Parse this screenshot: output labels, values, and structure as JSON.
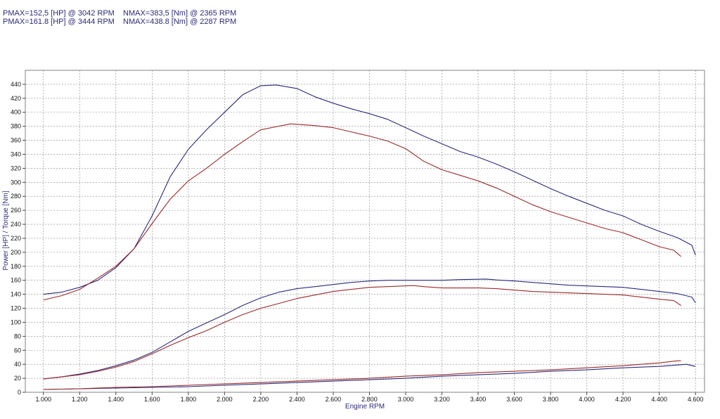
{
  "header": {
    "line1_p": "PMAX=152,5 [HP] @ 3042 RPM",
    "line1_n": "NMAX=383,5 [Nm] @ 2365 RPM",
    "line2_p": "PMAX=161.8 [HP] @ 3444 RPM",
    "line2_n": "NMAX=438.8 [Nm] @ 2287 RPM"
  },
  "chart_data": {
    "type": "line",
    "xlabel": "Engine RPM",
    "ylabel": "Power [HP] / Torque [Nm]",
    "xlim": [
      900,
      4650
    ],
    "ylim": [
      0,
      460
    ],
    "x_ticks": [
      "1.000",
      "1.200",
      "1.400",
      "1.600",
      "1.800",
      "2.000",
      "2.200",
      "2.400",
      "2.600",
      "2.800",
      "3.000",
      "3.200",
      "3.400",
      "3.600",
      "3.800",
      "4.000",
      "4.200",
      "4.400",
      "4.600"
    ],
    "x_tick_values": [
      1000,
      1200,
      1400,
      1600,
      1800,
      2000,
      2200,
      2400,
      2600,
      2800,
      3000,
      3200,
      3400,
      3600,
      3800,
      4000,
      4200,
      4400,
      4600
    ],
    "y_ticks": [
      0,
      20,
      40,
      60,
      80,
      100,
      120,
      140,
      160,
      180,
      200,
      220,
      240,
      260,
      280,
      300,
      320,
      340,
      360,
      380,
      400,
      420,
      440
    ],
    "grid": true,
    "colors": {
      "tuned": "#2a2a7a",
      "stock": "#9a2a2a"
    },
    "series": [
      {
        "color": "#2a2a7a",
        "x": [
          1000,
          1100,
          1200,
          1300,
          1400,
          1500,
          1600,
          1700,
          1800,
          1900,
          2000,
          2100,
          2200,
          2287,
          2400,
          2500,
          2600,
          2700,
          2800,
          2900,
          3000,
          3100,
          3200,
          3300,
          3400,
          3500,
          3600,
          3700,
          3800,
          3900,
          4000,
          4100,
          4200,
          4300,
          4400,
          4500,
          4580,
          4600
        ],
        "y": [
          140,
          143,
          150,
          160,
          178,
          205,
          252,
          308,
          347,
          375,
          400,
          425,
          438,
          439,
          434,
          422,
          413,
          405,
          398,
          390,
          378,
          366,
          355,
          344,
          336,
          326,
          315,
          303,
          291,
          280,
          270,
          260,
          252,
          240,
          230,
          221,
          210,
          196
        ]
      },
      {
        "color": "#9a2a2a",
        "x": [
          1000,
          1100,
          1200,
          1300,
          1400,
          1500,
          1600,
          1700,
          1800,
          1900,
          2000,
          2100,
          2200,
          2365,
          2500,
          2600,
          2700,
          2800,
          2900,
          3000,
          3100,
          3200,
          3300,
          3400,
          3500,
          3600,
          3700,
          3800,
          3900,
          4000,
          4100,
          4200,
          4300,
          4400,
          4480,
          4520
        ],
        "y": [
          132,
          138,
          147,
          163,
          180,
          205,
          241,
          276,
          302,
          320,
          340,
          358,
          375,
          383.5,
          381,
          378,
          372,
          366,
          359,
          348,
          330,
          318,
          310,
          302,
          292,
          280,
          268,
          258,
          250,
          242,
          234,
          228,
          218,
          208,
          203,
          194
        ]
      },
      {
        "color": "#2a2a7a",
        "x": [
          1000,
          1100,
          1200,
          1300,
          1400,
          1500,
          1600,
          1700,
          1800,
          1900,
          2000,
          2100,
          2200,
          2300,
          2400,
          2500,
          2600,
          2700,
          2800,
          2900,
          3000,
          3100,
          3200,
          3300,
          3444,
          3500,
          3600,
          3700,
          3800,
          3900,
          4000,
          4100,
          4200,
          4300,
          4400,
          4500,
          4580,
          4600
        ],
        "y": [
          19,
          22,
          26,
          31,
          38,
          46,
          57,
          72,
          87,
          99,
          111,
          124,
          135,
          143,
          148,
          151,
          154,
          157,
          159,
          160,
          160,
          160,
          160,
          161,
          161.8,
          160.5,
          159,
          157,
          155,
          153,
          152,
          151,
          150,
          147,
          144,
          141,
          136,
          128
        ]
      },
      {
        "color": "#9a2a2a",
        "x": [
          1000,
          1100,
          1200,
          1300,
          1400,
          1500,
          1600,
          1700,
          1800,
          1900,
          2000,
          2100,
          2200,
          2300,
          2400,
          2500,
          2600,
          2700,
          2800,
          2900,
          3042,
          3100,
          3200,
          3300,
          3400,
          3500,
          3600,
          3700,
          3800,
          3900,
          4000,
          4100,
          4200,
          4300,
          4400,
          4480,
          4520
        ],
        "y": [
          19,
          22,
          25,
          30,
          36,
          44,
          55,
          67,
          78,
          88,
          100,
          111,
          120,
          127,
          134,
          139,
          144,
          147,
          150,
          151,
          152.5,
          151,
          149,
          149,
          149,
          148,
          146,
          144,
          143,
          142,
          141,
          140,
          139,
          136,
          133,
          131,
          124
        ]
      },
      {
        "color": "#2a2a7a",
        "x": [
          1000,
          1200,
          1400,
          1600,
          1800,
          2000,
          2200,
          2400,
          2600,
          2800,
          3000,
          3200,
          3400,
          3600,
          3800,
          4000,
          4200,
          4400,
          4550,
          4600
        ],
        "y": [
          4,
          5,
          6,
          7,
          8,
          10,
          12,
          14,
          16,
          18,
          20,
          23,
          25,
          27,
          30,
          32,
          35,
          37,
          40,
          37
        ]
      },
      {
        "color": "#9a2a2a",
        "x": [
          1000,
          1200,
          1400,
          1600,
          1800,
          2000,
          2200,
          2400,
          2600,
          2800,
          3000,
          3200,
          3400,
          3600,
          3800,
          4000,
          4200,
          4400,
          4500,
          4520
        ],
        "y": [
          4,
          5,
          7,
          8,
          10,
          12,
          14,
          16,
          18,
          20,
          23,
          25,
          28,
          30,
          32,
          35,
          38,
          42,
          45,
          45
        ]
      }
    ]
  }
}
